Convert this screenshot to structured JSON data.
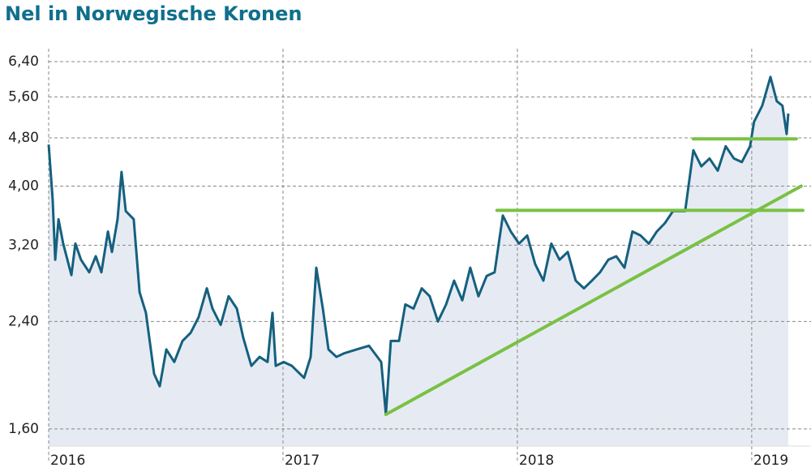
{
  "chart_data": {
    "type": "line",
    "title": "Nel in Norwegische Kronen",
    "log_scale": true,
    "grid": true,
    "xlim": [
      2016,
      2019.253
    ],
    "xticks": [
      2016,
      2017,
      2018,
      2019
    ],
    "ylim": [
      1.5,
      6.72
    ],
    "yticks": [
      {
        "value": 1.6,
        "label": "1,60"
      },
      {
        "value": 2.4,
        "label": "2,40"
      },
      {
        "value": 3.2,
        "label": "3,20"
      },
      {
        "value": 4.0,
        "label": "4,00"
      },
      {
        "value": 4.8,
        "label": "4,80"
      },
      {
        "value": 5.6,
        "label": "5,60"
      },
      {
        "value": 6.4,
        "label": "6,40"
      }
    ],
    "series": [
      {
        "color": "#15607f",
        "fill": "#e6ebf3",
        "x": [
          2016.0,
          2016.017,
          2016.028,
          2016.042,
          2016.062,
          2016.097,
          2016.114,
          2016.138,
          2016.173,
          2016.201,
          2016.225,
          2016.253,
          2016.27,
          2016.294,
          2016.311,
          2016.329,
          2016.363,
          2016.388,
          2016.415,
          2016.45,
          2016.474,
          2016.502,
          2016.536,
          2016.571,
          2016.606,
          2016.64,
          2016.675,
          2016.699,
          2016.734,
          2016.768,
          2016.803,
          2016.83,
          2016.865,
          2016.9,
          2016.934,
          2016.955,
          2016.969,
          2017.003,
          2017.038,
          2017.09,
          2017.118,
          2017.142,
          2017.17,
          2017.194,
          2017.228,
          2017.263,
          2017.315,
          2017.367,
          2017.419,
          2017.439,
          2017.46,
          2017.495,
          2017.522,
          2017.557,
          2017.592,
          2017.626,
          2017.661,
          2017.696,
          2017.73,
          2017.765,
          2017.799,
          2017.834,
          2017.869,
          2017.903,
          2017.938,
          2017.972,
          2018.007,
          2018.042,
          2018.076,
          2018.111,
          2018.145,
          2018.18,
          2018.215,
          2018.249,
          2018.284,
          2018.318,
          2018.353,
          2018.388,
          2018.422,
          2018.457,
          2018.491,
          2018.526,
          2018.561,
          2018.595,
          2018.63,
          2018.664,
          2018.716,
          2018.751,
          2018.785,
          2018.82,
          2018.855,
          2018.889,
          2018.924,
          2018.958,
          2018.993,
          2019.01,
          2019.045,
          2019.08,
          2019.107,
          2019.131,
          2019.149,
          2019.156
        ],
        "values": [
          4.68,
          3.81,
          3.03,
          3.53,
          3.22,
          2.86,
          3.22,
          3.03,
          2.89,
          3.07,
          2.89,
          3.37,
          3.12,
          3.53,
          4.22,
          3.64,
          3.53,
          2.68,
          2.48,
          1.97,
          1.88,
          2.16,
          2.06,
          2.23,
          2.3,
          2.44,
          2.72,
          2.52,
          2.37,
          2.64,
          2.52,
          2.26,
          2.03,
          2.1,
          2.06,
          2.48,
          2.03,
          2.06,
          2.03,
          1.94,
          2.1,
          2.94,
          2.52,
          2.16,
          2.1,
          2.13,
          2.16,
          2.19,
          2.06,
          1.69,
          2.23,
          2.23,
          2.56,
          2.52,
          2.72,
          2.64,
          2.4,
          2.56,
          2.8,
          2.6,
          2.94,
          2.64,
          2.85,
          2.89,
          3.58,
          3.37,
          3.22,
          3.32,
          2.98,
          2.8,
          3.22,
          3.03,
          3.12,
          2.8,
          2.72,
          2.8,
          2.89,
          3.03,
          3.07,
          2.94,
          3.37,
          3.32,
          3.22,
          3.37,
          3.48,
          3.64,
          3.64,
          4.58,
          4.31,
          4.44,
          4.24,
          4.65,
          4.44,
          4.38,
          4.65,
          5.1,
          5.42,
          6.04,
          5.51,
          5.42,
          4.87,
          5.26
        ]
      }
    ],
    "lines": [
      {
        "color": "#7ac143",
        "x": [
          2017.439,
          2019.211
        ],
        "values": [
          1.69,
          4.0
        ]
      },
      {
        "color": "#7ac143",
        "x": [
          2017.913,
          2019.218
        ],
        "values": [
          3.65,
          3.65
        ]
      },
      {
        "color": "#7ac143",
        "x": [
          2018.751,
          2019.19
        ],
        "values": [
          4.78,
          4.78
        ]
      }
    ]
  }
}
